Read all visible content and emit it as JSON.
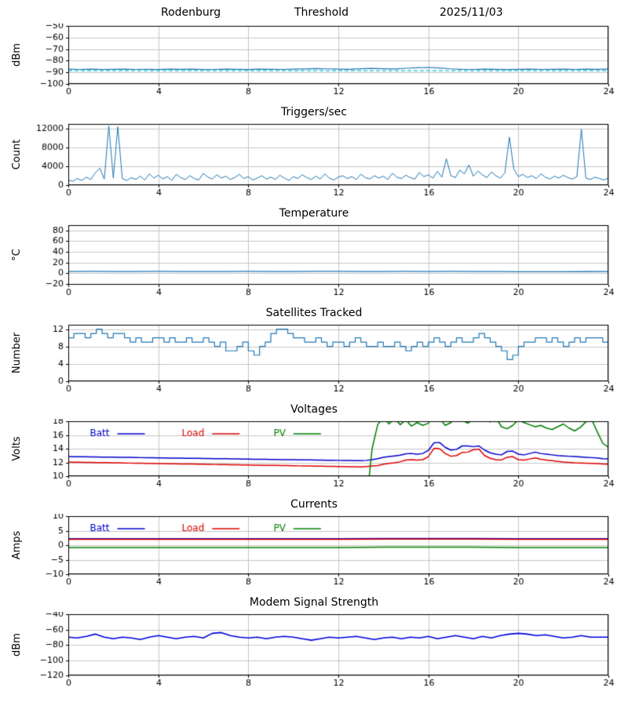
{
  "header": {
    "station": "Rodenburg",
    "label": "Threshold",
    "date": "2025/11/03"
  },
  "chart_data": [
    {
      "id": "rf-threshold",
      "type": "line",
      "title": "",
      "ylabel": "dBm",
      "xlim": [
        0,
        24
      ],
      "xticks": [
        0,
        4,
        8,
        12,
        16,
        20,
        24
      ],
      "ylim": [
        -100,
        -50
      ],
      "yticks": [
        -100,
        -90,
        -80,
        -70,
        -60,
        -50
      ],
      "grid": true,
      "legend": null,
      "series": [
        {
          "name": "rf-level",
          "color": "#1f77b4",
          "width": 1.2,
          "x_start": 0,
          "x_step": 0.5,
          "y": [
            -87.2,
            -87.5,
            -87.3,
            -87.6,
            -87.4,
            -87.2,
            -87.5,
            -87.4,
            -87.6,
            -87.3,
            -87.4,
            -87.2,
            -87.6,
            -87.5,
            -87.3,
            -87.4,
            -87.6,
            -87.2,
            -87.4,
            -87.5,
            -87.3,
            -87.1,
            -86.8,
            -87.0,
            -87.2,
            -87.4,
            -86.9,
            -86.6,
            -86.9,
            -87.1,
            -86.5,
            -86.0,
            -85.8,
            -86.3,
            -87.0,
            -87.4,
            -87.5,
            -87.3,
            -87.4,
            -87.6,
            -87.4,
            -87.3,
            -87.5,
            -87.4,
            -87.2,
            -87.5,
            -87.3,
            -87.4,
            -87.3
          ]
        },
        {
          "name": "threshold",
          "color": "#17becf",
          "width": 1.1,
          "dash": [
            5,
            3
          ],
          "x_start": 0,
          "x_step": 24,
          "y": [
            -88.6,
            -88.6
          ]
        }
      ]
    },
    {
      "id": "triggers",
      "type": "line",
      "title": "Triggers/sec",
      "ylabel": "Count",
      "xlim": [
        0,
        24
      ],
      "xticks": [
        0,
        4,
        8,
        12,
        16,
        20,
        24
      ],
      "ylim": [
        0,
        13000
      ],
      "yticks": [
        0,
        4000,
        8000,
        12000
      ],
      "grid": true,
      "legend": null,
      "series": [
        {
          "name": "triggers-per-sec",
          "color": "#1f77b4",
          "width": 1.0,
          "x_start": 0,
          "x_step": 0.2,
          "y": [
            1100,
            800,
            1400,
            1000,
            1700,
            1200,
            2600,
            3600,
            1300,
            12600,
            1500,
            12400,
            1400,
            1000,
            1600,
            1200,
            1900,
            1100,
            2400,
            1500,
            2100,
            1300,
            1800,
            1000,
            2300,
            1600,
            1200,
            2000,
            1400,
            1100,
            2500,
            1700,
            1300,
            2200,
            1500,
            1900,
            1200,
            1600,
            2300,
            1400,
            1800,
            1100,
            1500,
            2000,
            1300,
            1700,
            1200,
            2100,
            1500,
            1000,
            1800,
            1400,
            2200,
            1600,
            1200,
            1900,
            1300,
            2400,
            1500,
            1100,
            1700,
            2000,
            1400,
            1800,
            1200,
            2300,
            1600,
            1300,
            2000,
            1500,
            1900,
            1200,
            2500,
            1700,
            1400,
            2100,
            1600,
            1300,
            2700,
            1800,
            2200,
            1500,
            2900,
            1700,
            5600,
            2000,
            1600,
            3200,
            2400,
            4300,
            1900,
            3000,
            2200,
            1600,
            2800,
            2000,
            1500,
            2600,
            10200,
            3400,
            1800,
            2300,
            1600,
            2000,
            1400,
            2400,
            1700,
            1300,
            1900,
            1500,
            2100,
            1600,
            1300,
            1800,
            11900,
            1500,
            1200,
            1700,
            1400,
            1100,
            1500
          ]
        }
      ]
    },
    {
      "id": "temperature",
      "type": "line",
      "title": "Temperature",
      "ylabel": "°C",
      "xlim": [
        0,
        24
      ],
      "xticks": [
        0,
        4,
        8,
        12,
        16,
        20,
        24
      ],
      "ylim": [
        -22,
        90
      ],
      "yticks": [
        -20,
        0,
        20,
        40,
        60,
        80
      ],
      "grid": true,
      "legend": null,
      "series": [
        {
          "name": "temperature-c",
          "color": "#1f77b4",
          "width": 1.3,
          "x_start": 0,
          "x_step": 1,
          "y": [
            3.0,
            3.1,
            2.9,
            3.0,
            3.2,
            3.0,
            2.8,
            3.0,
            3.1,
            2.9,
            3.0,
            3.2,
            3.1,
            3.0,
            2.9,
            3.1,
            3.0,
            3.2,
            3.0,
            2.8,
            2.6,
            2.5,
            2.6,
            2.7,
            2.8
          ]
        }
      ]
    },
    {
      "id": "satellites",
      "type": "line",
      "title": "Satellites Tracked",
      "ylabel": "Number",
      "xlim": [
        0,
        24
      ],
      "xticks": [
        0,
        4,
        8,
        12,
        16,
        20,
        24
      ],
      "ylim": [
        0,
        13
      ],
      "yticks": [
        0,
        4,
        8,
        12
      ],
      "grid": true,
      "legend": null,
      "series": [
        {
          "name": "satellites-tracked",
          "color": "#1f77b4",
          "width": 1.2,
          "step": true,
          "x_start": 0,
          "x_step": 0.25,
          "y": [
            10,
            11,
            11,
            10,
            11,
            12,
            11,
            10,
            11,
            11,
            10,
            9,
            10,
            9,
            9,
            10,
            10,
            9,
            10,
            9,
            9,
            10,
            9,
            9,
            10,
            9,
            8,
            9,
            7,
            7,
            8,
            9,
            7,
            6,
            8,
            9,
            11,
            12,
            12,
            11,
            10,
            10,
            9,
            9,
            10,
            9,
            8,
            9,
            9,
            8,
            9,
            10,
            9,
            8,
            8,
            9,
            8,
            8,
            9,
            8,
            7,
            8,
            9,
            8,
            9,
            10,
            9,
            8,
            9,
            10,
            9,
            9,
            10,
            11,
            10,
            9,
            8,
            7,
            5,
            6,
            8,
            9,
            9,
            10,
            10,
            9,
            10,
            9,
            8,
            9,
            10,
            9,
            10,
            10,
            10,
            9,
            10
          ]
        }
      ]
    },
    {
      "id": "voltages",
      "type": "line",
      "title": "Voltages",
      "ylabel": "Volts",
      "xlim": [
        0,
        24
      ],
      "xticks": [
        0,
        4,
        8,
        12,
        16,
        20,
        24
      ],
      "ylim": [
        10,
        18
      ],
      "yticks": [
        10,
        12,
        14,
        16,
        18
      ],
      "grid": true,
      "legend": {
        "items": [
          {
            "label": "Batt",
            "color": "#0000cc"
          },
          {
            "label": "Load",
            "color": "#dd0000"
          },
          {
            "label": "PV",
            "color": "#007f00"
          }
        ]
      },
      "series": [
        {
          "name": "batt-volts",
          "color": "#0000cc",
          "width": 1.5,
          "x_start": 0,
          "x_step": 0.25,
          "y": [
            12.85,
            12.84,
            12.83,
            12.82,
            12.81,
            12.79,
            12.78,
            12.77,
            12.76,
            12.75,
            12.74,
            12.73,
            12.71,
            12.7,
            12.69,
            12.68,
            12.67,
            12.66,
            12.64,
            12.63,
            12.62,
            12.61,
            12.6,
            12.59,
            12.58,
            12.56,
            12.55,
            12.54,
            12.53,
            12.52,
            12.51,
            12.49,
            12.48,
            12.47,
            12.46,
            12.45,
            12.44,
            12.43,
            12.41,
            12.4,
            12.39,
            12.38,
            12.37,
            12.36,
            12.34,
            12.33,
            12.32,
            12.31,
            12.3,
            12.29,
            12.28,
            12.26,
            12.25,
            12.3,
            12.4,
            12.55,
            12.75,
            12.85,
            12.95,
            13.05,
            13.25,
            13.3,
            13.2,
            13.3,
            13.75,
            14.85,
            14.9,
            14.2,
            13.8,
            13.9,
            14.4,
            14.4,
            14.3,
            14.4,
            13.8,
            13.4,
            13.2,
            13.1,
            13.6,
            13.65,
            13.2,
            13.1,
            13.3,
            13.5,
            13.3,
            13.2,
            13.1,
            13.0,
            12.95,
            12.9,
            12.85,
            12.8,
            12.75,
            12.7,
            12.65,
            12.55,
            12.5
          ]
        },
        {
          "name": "load-volts",
          "color": "#dd0000",
          "width": 1.5,
          "x_start": 0,
          "x_step": 0.25,
          "y": [
            12.05,
            12.04,
            12.02,
            12.01,
            12.0,
            11.98,
            11.97,
            11.96,
            11.94,
            11.93,
            11.92,
            11.9,
            11.89,
            11.88,
            11.86,
            11.85,
            11.84,
            11.82,
            11.81,
            11.8,
            11.78,
            11.77,
            11.76,
            11.74,
            11.73,
            11.72,
            11.7,
            11.69,
            11.68,
            11.66,
            11.65,
            11.64,
            11.62,
            11.61,
            11.6,
            11.58,
            11.57,
            11.56,
            11.54,
            11.53,
            11.52,
            11.5,
            11.49,
            11.48,
            11.46,
            11.45,
            11.44,
            11.42,
            11.41,
            11.4,
            11.38,
            11.37,
            11.35,
            11.4,
            11.48,
            11.55,
            11.75,
            11.85,
            11.95,
            12.1,
            12.35,
            12.4,
            12.35,
            12.4,
            12.85,
            14.05,
            14.0,
            13.3,
            12.9,
            13.0,
            13.45,
            13.5,
            13.85,
            13.95,
            13.0,
            12.6,
            12.4,
            12.35,
            12.75,
            12.85,
            12.4,
            12.35,
            12.5,
            12.65,
            12.45,
            12.35,
            12.25,
            12.15,
            12.05,
            12.0,
            11.95,
            11.92,
            11.88,
            11.85,
            11.82,
            11.78,
            11.75
          ]
        },
        {
          "name": "pv-volts",
          "color": "#007f00",
          "width": 1.5,
          "x_start": 0,
          "x_step": 0.25,
          "y": [
            0,
            0,
            0,
            0,
            0,
            0,
            0,
            0,
            0,
            0,
            0,
            0,
            0,
            0,
            0,
            0,
            0,
            0,
            0,
            0,
            0,
            0,
            0,
            0,
            0,
            0,
            0,
            0,
            0,
            0,
            0,
            0,
            0,
            0,
            0,
            0,
            0,
            0,
            0,
            0,
            0,
            0,
            0,
            0,
            0,
            0,
            0,
            0,
            0,
            0,
            0,
            0,
            0,
            6.0,
            14.0,
            17.5,
            18.6,
            17.6,
            18.4,
            17.5,
            18.2,
            17.3,
            17.8,
            17.4,
            17.7,
            18.8,
            18.4,
            17.4,
            17.8,
            18.6,
            18.2,
            17.7,
            18.3,
            18.9,
            18.4,
            17.9,
            18.5,
            17.2,
            16.9,
            17.4,
            18.2,
            17.8,
            17.5,
            17.2,
            17.4,
            17.0,
            16.8,
            17.2,
            17.6,
            17.0,
            16.6,
            17.1,
            17.9,
            18.3,
            16.5,
            14.8,
            14.2
          ]
        }
      ]
    },
    {
      "id": "currents",
      "type": "line",
      "title": "Currents",
      "ylabel": "Amps",
      "xlim": [
        0,
        24
      ],
      "xticks": [
        0,
        4,
        8,
        12,
        16,
        20,
        24
      ],
      "ylim": [
        -10,
        10
      ],
      "yticks": [
        -10,
        -5,
        0,
        5,
        10
      ],
      "grid": true,
      "legend": {
        "items": [
          {
            "label": "Batt",
            "color": "#0000cc"
          },
          {
            "label": "Load",
            "color": "#dd0000"
          },
          {
            "label": "PV",
            "color": "#007f00"
          }
        ]
      },
      "series": [
        {
          "name": "batt-amps",
          "color": "#0000cc",
          "width": 1.5,
          "x_start": 0,
          "x_step": 2,
          "y": [
            2.2,
            2.2,
            2.2,
            2.2,
            2.2,
            2.2,
            2.2,
            2.3,
            2.3,
            2.3,
            2.2,
            2.2,
            2.2
          ]
        },
        {
          "name": "load-amps",
          "color": "#dd0000",
          "width": 1.5,
          "x_start": 0,
          "x_step": 2,
          "y": [
            2.0,
            2.0,
            2.0,
            2.0,
            2.0,
            2.0,
            2.0,
            2.1,
            2.1,
            2.1,
            2.0,
            2.0,
            2.0
          ]
        },
        {
          "name": "pv-amps",
          "color": "#007f00",
          "width": 1.5,
          "x_start": 0,
          "x_step": 2,
          "y": [
            -0.8,
            -0.8,
            -0.8,
            -0.8,
            -0.8,
            -0.8,
            -0.8,
            -0.7,
            -0.7,
            -0.7,
            -0.8,
            -0.8,
            -0.8
          ]
        }
      ]
    },
    {
      "id": "modem-signal",
      "type": "line",
      "title": "Modem Signal Strength",
      "ylabel": "dBm",
      "xlim": [
        0,
        24
      ],
      "xticks": [
        0,
        4,
        8,
        12,
        16,
        20,
        24
      ],
      "ylim": [
        -120,
        -40
      ],
      "yticks": [
        -120,
        -100,
        -80,
        -60,
        -40
      ],
      "grid": true,
      "legend": null,
      "series": [
        {
          "name": "modem-dbm",
          "color": "#0000dd",
          "width": 1.6,
          "x_start": 0,
          "x_step": 0.4,
          "y": [
            -70,
            -71,
            -69,
            -66,
            -70,
            -72,
            -70,
            -71,
            -73,
            -70,
            -68,
            -70,
            -72,
            -70,
            -69,
            -71,
            -65,
            -64,
            -68,
            -70,
            -71,
            -70,
            -72,
            -70,
            -69,
            -70,
            -72,
            -74,
            -72,
            -70,
            -71,
            -70,
            -69,
            -71,
            -73,
            -71,
            -70,
            -72,
            -70,
            -71,
            -69,
            -72,
            -70,
            -68,
            -70,
            -72,
            -69,
            -71,
            -68,
            -66,
            -65,
            -66,
            -68,
            -67,
            -69,
            -71,
            -70,
            -68,
            -70,
            -70,
            -70
          ]
        }
      ]
    }
  ]
}
